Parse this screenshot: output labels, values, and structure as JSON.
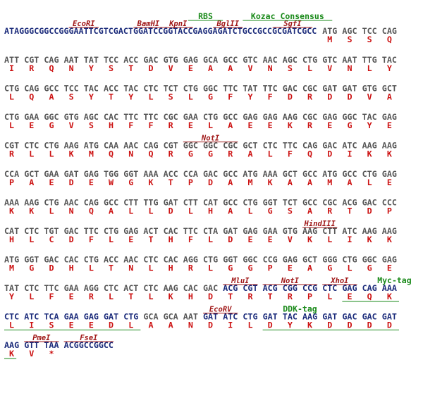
{
  "rows": [
    {
      "prefix": "ATAGGGCGGCCGGGAATTCGTCGACTGGATCCGGTACCGAGGAGATCTGCCGCCGCGATCGCC",
      "codons": [
        "ATG",
        "AGC",
        "TCC",
        "CAG"
      ],
      "aas": [
        "M",
        "S",
        "S",
        "Q"
      ]
    },
    {
      "codons": [
        "ATT",
        "CGT",
        "CAG",
        "AAT",
        "TAT",
        "TCC",
        "ACC",
        "GAC",
        "GTG",
        "GAG",
        "GCA",
        "GCC",
        "GTC",
        "AAC",
        "AGC",
        "CTG",
        "GTC",
        "AAT",
        "TTG",
        "TAC"
      ],
      "aas": [
        "I",
        "R",
        "Q",
        "N",
        "Y",
        "S",
        "T",
        "D",
        "V",
        "E",
        "A",
        "A",
        "V",
        "N",
        "S",
        "L",
        "V",
        "N",
        "L",
        "Y"
      ]
    },
    {
      "codons": [
        "CTG",
        "CAG",
        "GCC",
        "TCC",
        "TAC",
        "ACC",
        "TAC",
        "CTC",
        "TCT",
        "CTG",
        "GGC",
        "TTC",
        "TAT",
        "TTC",
        "GAC",
        "CGC",
        "GAT",
        "GAT",
        "GTG",
        "GCT"
      ],
      "aas": [
        "L",
        "Q",
        "A",
        "S",
        "Y",
        "T",
        "Y",
        "L",
        "S",
        "L",
        "G",
        "F",
        "Y",
        "F",
        "D",
        "R",
        "D",
        "D",
        "V",
        "A"
      ]
    },
    {
      "codons": [
        "CTG",
        "GAA",
        "GGC",
        "GTG",
        "AGC",
        "CAC",
        "TTC",
        "TTC",
        "CGC",
        "GAA",
        "CTG",
        "GCC",
        "GAG",
        "GAG",
        "AAG",
        "CGC",
        "GAG",
        "GGC",
        "TAC",
        "GAG"
      ],
      "aas": [
        "L",
        "E",
        "G",
        "V",
        "S",
        "H",
        "F",
        "F",
        "R",
        "E",
        "L",
        "A",
        "E",
        "E",
        "K",
        "R",
        "E",
        "G",
        "Y",
        "E"
      ]
    },
    {
      "codons": [
        "CGT",
        "CTC",
        "CTG",
        "AAG",
        "ATG",
        "CAA",
        "AAC",
        "CAG",
        "CGT",
        "GGC",
        "GGC",
        "CGC",
        "GCT",
        "CTC",
        "TTC",
        "CAG",
        "GAC",
        "ATC",
        "AAG",
        "AAG"
      ],
      "aas": [
        "R",
        "L",
        "L",
        "K",
        "M",
        "Q",
        "N",
        "Q",
        "R",
        "G",
        "G",
        "R",
        "A",
        "L",
        "F",
        "Q",
        "D",
        "I",
        "K",
        "K"
      ]
    },
    {
      "codons": [
        "CCA",
        "GCT",
        "GAA",
        "GAT",
        "GAG",
        "TGG",
        "GGT",
        "AAA",
        "ACC",
        "CCA",
        "GAC",
        "GCC",
        "ATG",
        "AAA",
        "GCT",
        "GCC",
        "ATG",
        "GCC",
        "CTG",
        "GAG"
      ],
      "aas": [
        "P",
        "A",
        "E",
        "D",
        "E",
        "W",
        "G",
        "K",
        "T",
        "P",
        "D",
        "A",
        "M",
        "K",
        "A",
        "A",
        "M",
        "A",
        "L",
        "E"
      ]
    },
    {
      "codons": [
        "AAA",
        "AAG",
        "CTG",
        "AAC",
        "CAG",
        "GCC",
        "CTT",
        "TTG",
        "GAT",
        "CTT",
        "CAT",
        "GCC",
        "CTG",
        "GGT",
        "TCT",
        "GCC",
        "CGC",
        "ACG",
        "GAC",
        "CCC"
      ],
      "aas": [
        "K",
        "K",
        "L",
        "N",
        "Q",
        "A",
        "L",
        "L",
        "D",
        "L",
        "H",
        "A",
        "L",
        "G",
        "S",
        "A",
        "R",
        "T",
        "D",
        "P"
      ]
    },
    {
      "codons": [
        "CAT",
        "CTC",
        "TGT",
        "GAC",
        "TTC",
        "CTG",
        "GAG",
        "ACT",
        "CAC",
        "TTC",
        "CTA",
        "GAT",
        "GAG",
        "GAA",
        "GTG",
        "AAG",
        "CTT",
        "ATC",
        "AAG",
        "AAG"
      ],
      "aas": [
        "H",
        "L",
        "C",
        "D",
        "F",
        "L",
        "E",
        "T",
        "H",
        "F",
        "L",
        "D",
        "E",
        "E",
        "V",
        "K",
        "L",
        "I",
        "K",
        "K"
      ]
    },
    {
      "codons": [
        "ATG",
        "GGT",
        "GAC",
        "CAC",
        "CTG",
        "ACC",
        "AAC",
        "CTC",
        "CAC",
        "AGG",
        "CTG",
        "GGT",
        "GGC",
        "CCG",
        "GAG",
        "GCT",
        "GGG",
        "CTG",
        "GGC",
        "GAG"
      ],
      "aas": [
        "M",
        "G",
        "D",
        "H",
        "L",
        "T",
        "N",
        "L",
        "H",
        "R",
        "L",
        "G",
        "G",
        "P",
        "E",
        "A",
        "G",
        "L",
        "G",
        "E"
      ]
    },
    {
      "codons": [
        "TAT",
        "CTC",
        "TTC",
        "GAA",
        "AGG",
        "CTC",
        "ACT",
        "CTC",
        "AAG",
        "CAC",
        "GAC",
        "ACG",
        "CGT",
        "ACG",
        "CGG",
        "CCG",
        "CTC",
        "GAG",
        "CAG",
        "AAA"
      ],
      "aas": [
        "Y",
        "L",
        "F",
        "E",
        "R",
        "L",
        "T",
        "L",
        "K",
        "H",
        "D",
        "T",
        "R",
        "T",
        "R",
        "P",
        "L",
        "E",
        "Q",
        "K"
      ]
    },
    {
      "codons": [
        "CTC",
        "ATC",
        "TCA",
        "GAA",
        "GAG",
        "GAT",
        "CTG",
        "GCA",
        "GCA",
        "AAT",
        "GAT",
        "ATC",
        "CTG",
        "GAT",
        "TAC",
        "AAG",
        "GAT",
        "GAC",
        "GAC",
        "GAT"
      ],
      "aas": [
        "L",
        "I",
        "S",
        "E",
        "E",
        "D",
        "L",
        "A",
        "A",
        "N",
        "D",
        "I",
        "L",
        "D",
        "Y",
        "K",
        "D",
        "D",
        "D",
        "D"
      ]
    },
    {
      "codons": [
        "AAG",
        "GTT",
        "TAA"
      ],
      "aas": [
        "K",
        "V",
        "*"
      ],
      "suffix": "ACGGCCGGCC"
    }
  ],
  "annotations": [
    {
      "label": "EcoRI"
    },
    {
      "label": "BamHI"
    },
    {
      "label": "KpnI"
    },
    {
      "label": "BglII"
    },
    {
      "label": "SgfI"
    },
    {
      "label": "RBS"
    },
    {
      "label": "Kozac Consensus"
    },
    {
      "label": "NotI"
    },
    {
      "label": "HindIII"
    },
    {
      "label": "MluI"
    },
    {
      "label": "NotI"
    },
    {
      "label": "XhoI"
    },
    {
      "label": "Myc-tag"
    },
    {
      "label": "EcoRV"
    },
    {
      "label": "DDK-tag"
    },
    {
      "label": "PmeI"
    },
    {
      "label": "FseI"
    }
  ]
}
